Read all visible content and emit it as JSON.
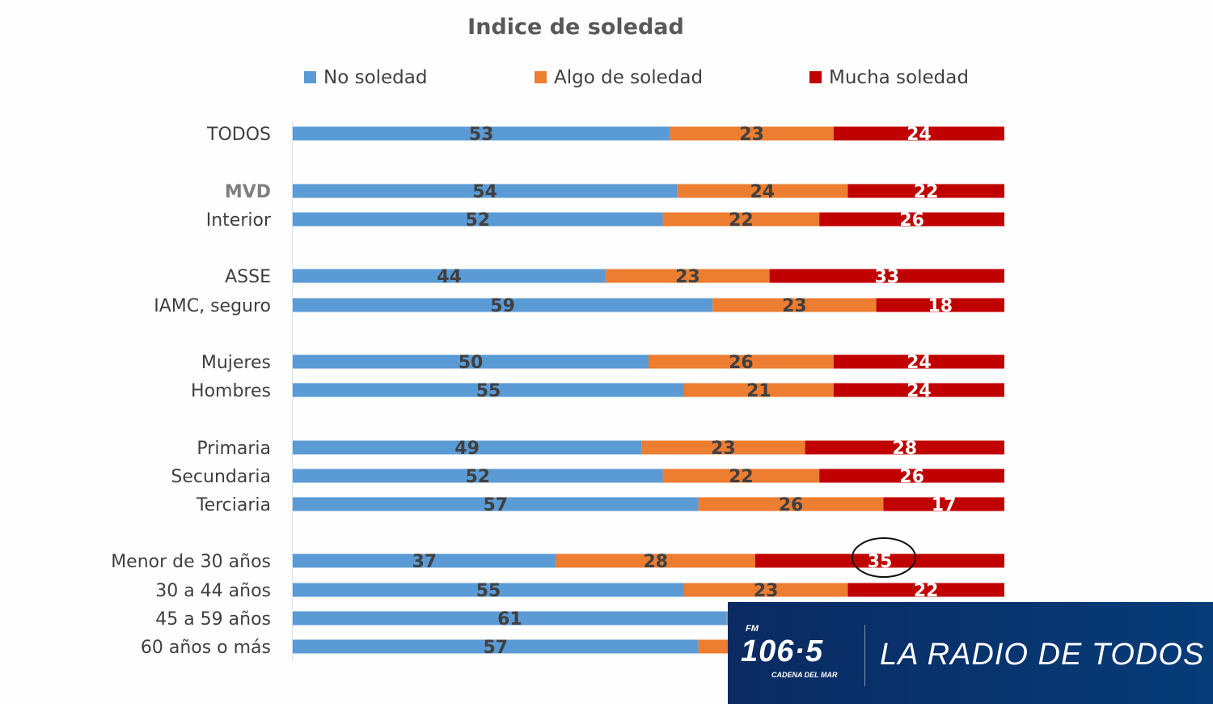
{
  "chart_data": {
    "type": "bar",
    "orientation": "horizontal-stacked-100",
    "title": "Indice de soledad",
    "legend_position": "top",
    "series": [
      {
        "name": "No soledad",
        "color": "#5b9bd5",
        "label_color": "#404040"
      },
      {
        "name": "Algo de soledad",
        "color": "#ed7d31",
        "label_color": "#404040"
      },
      {
        "name": "Mucha soledad",
        "color": "#c00000",
        "label_color": "#ffffff"
      }
    ],
    "categories": [
      "TODOS",
      "MVD",
      "Interior",
      "ASSE",
      "IAMC, seguro",
      "Mujeres",
      "Hombres",
      "Primaria",
      "Secundaria",
      "Terciaria",
      "Menor de 30 años",
      "30 a 44 años",
      "45 a 59 años",
      "60 años o más"
    ],
    "category_colors": {
      "MVD": "#7f7f7f"
    },
    "values": [
      [
        53,
        23,
        24
      ],
      [
        54,
        24,
        22
      ],
      [
        52,
        22,
        26
      ],
      [
        44,
        23,
        33
      ],
      [
        59,
        23,
        18
      ],
      [
        50,
        26,
        24
      ],
      [
        55,
        21,
        24
      ],
      [
        49,
        23,
        28
      ],
      [
        52,
        22,
        26
      ],
      [
        57,
        26,
        17
      ],
      [
        37,
        28,
        35
      ],
      [
        55,
        23,
        22
      ],
      [
        61,
        null,
        null
      ],
      [
        57,
        null,
        null
      ]
    ],
    "xlim": [
      0,
      100
    ],
    "grid": false,
    "annotation": {
      "type": "circle",
      "category": "Menor de 30 años",
      "series": "Mucha soledad",
      "value": 35
    }
  },
  "overlay": {
    "logo": {
      "fm": "FM",
      "frequency": "106·5",
      "network": "CADENA DEL MAR"
    },
    "slogan": "LA RADIO DE TODOS",
    "background": "#0b2a62"
  }
}
